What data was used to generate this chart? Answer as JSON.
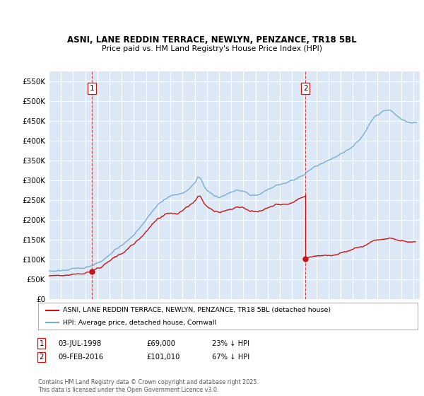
{
  "title": "ASNI, LANE REDDIN TERRACE, NEWLYN, PENZANCE, TR18 5BL",
  "subtitle": "Price paid vs. HM Land Registry's House Price Index (HPI)",
  "ylim": [
    0,
    575000
  ],
  "yticks": [
    0,
    50000,
    100000,
    150000,
    200000,
    250000,
    300000,
    350000,
    400000,
    450000,
    500000,
    550000
  ],
  "xlim_start": 1995.0,
  "xlim_end": 2025.5,
  "bg_color": "#dce8f5",
  "grid_color": "#ffffff",
  "hpi_color": "#7aadd4",
  "price_color": "#cc1111",
  "sale1_x": 1998.54,
  "sale1_y": 69000,
  "sale2_x": 2016.1,
  "sale2_y": 101010,
  "legend1": "ASNI, LANE REDDIN TERRACE, NEWLYN, PENZANCE, TR18 5BL (detached house)",
  "legend2": "HPI: Average price, detached house, Cornwall",
  "ann1_date": "03-JUL-1998",
  "ann1_price": "£69,000",
  "ann1_hpi": "23% ↓ HPI",
  "ann2_date": "09-FEB-2016",
  "ann2_price": "£101,010",
  "ann2_hpi": "67% ↓ HPI",
  "footer": "Contains HM Land Registry data © Crown copyright and database right 2025.\nThis data is licensed under the Open Government Licence v3.0."
}
